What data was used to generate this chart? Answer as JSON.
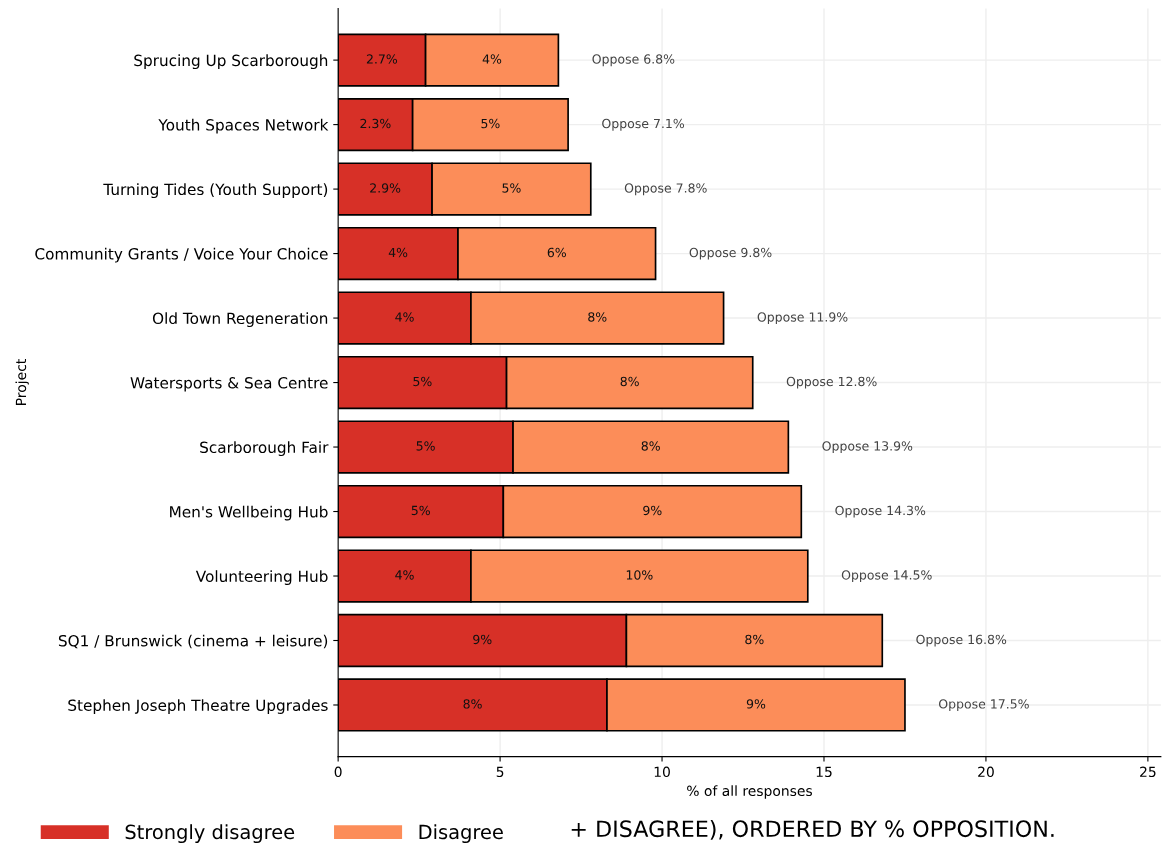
{
  "chart_data": {
    "type": "bar",
    "orientation": "horizontal",
    "stacked": true,
    "ylabel": "Project",
    "xlabel": "% of all responses",
    "categories": [
      "Sprucing Up Scarborough",
      "Youth Spaces Network",
      "Turning Tides (Youth Support)",
      "Community Grants / Voice Your Choice",
      "Old Town Regeneration",
      "Watersports & Sea Centre",
      "Scarborough Fair",
      "Men's Wellbeing Hub",
      "Volunteering Hub",
      "SQ1 / Brunswick (cinema + leisure)",
      "Stephen Joseph Theatre Upgrades"
    ],
    "series": [
      {
        "name": "Strongly disagree",
        "color": "#d73027",
        "values": [
          2.7,
          2.3,
          2.9,
          3.7,
          4.1,
          5.2,
          5.4,
          5.1,
          4.1,
          8.9,
          8.3
        ],
        "value_labels": [
          "2.7%",
          "2.3%",
          "2.9%",
          "4%",
          "4%",
          "5%",
          "5%",
          "5%",
          "4%",
          "9%",
          "8%"
        ]
      },
      {
        "name": "Disagree",
        "color": "#fc8d59",
        "values": [
          4.1,
          4.8,
          4.9,
          6.1,
          7.8,
          7.6,
          8.5,
          9.2,
          10.4,
          7.9,
          9.2
        ],
        "value_labels": [
          "4%",
          "5%",
          "5%",
          "6%",
          "8%",
          "8%",
          "8%",
          "9%",
          "10%",
          "8%",
          "9%"
        ]
      }
    ],
    "totals": [
      "Oppose 6.8%",
      "Oppose 7.1%",
      "Oppose 7.8%",
      "Oppose 9.8%",
      "Oppose 11.9%",
      "Oppose 12.8%",
      "Oppose 13.9%",
      "Oppose 14.3%",
      "Oppose 14.5%",
      "Oppose 16.8%",
      "Oppose 17.5%"
    ],
    "xlim": [
      0,
      25.4
    ],
    "xticks": [
      0,
      5,
      10,
      15,
      20,
      25
    ],
    "grid": true,
    "legend": "bottom left",
    "annotations": [
      "+ DISAGREE), ORDERED BY % OPPOSITION."
    ]
  }
}
